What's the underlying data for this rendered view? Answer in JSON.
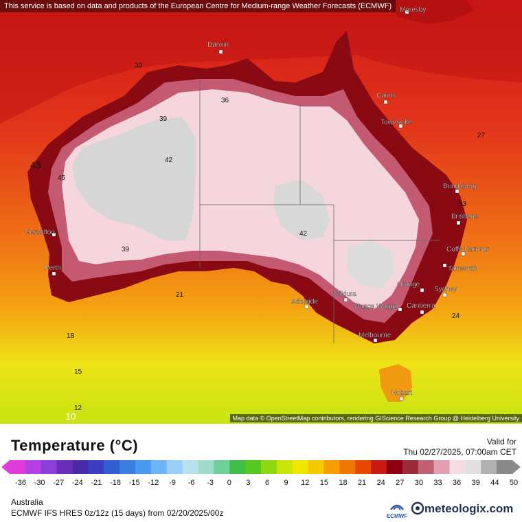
{
  "attribution_top": "This service is based on data and products of the European Centre for Medium-range Weather Forecasts (ECMWF)",
  "attribution_bottom": "Map data © OpenStreetMap contributors, rendering GIScience Research Group @ Heidelberg University",
  "legend": {
    "title": "Temperature (°C)",
    "valid_label": "Valid for",
    "valid_value": "Thu 02/27/2025, 07:00am CET",
    "ticks": [
      "-36",
      "-30",
      "-27",
      "-24",
      "-21",
      "-18",
      "-15",
      "-12",
      "-9",
      "-6",
      "-3",
      "0",
      "3",
      "6",
      "9",
      "12",
      "15",
      "18",
      "21",
      "24",
      "27",
      "30",
      "33",
      "36",
      "39",
      "44",
      "50"
    ],
    "colors": [
      "#e03bd8",
      "#b53fe0",
      "#8a3fd6",
      "#6a2fb8",
      "#4b2aa8",
      "#3b3ec0",
      "#2f5fd0",
      "#3a7ee0",
      "#4a9af0",
      "#6cb6f5",
      "#98cff7",
      "#b8e2f0",
      "#a0dccc",
      "#6fd19a",
      "#3fbf4a",
      "#57c81f",
      "#8fd80f",
      "#c8e40a",
      "#f0e600",
      "#f5c800",
      "#f59f00",
      "#f07800",
      "#e84800",
      "#c81a10",
      "#8a0010",
      "#9a2a3a",
      "#c06070",
      "#e0a0b0",
      "#f5dde2",
      "#e0e0e0",
      "#b0b0b0",
      "#8a8a8a"
    ]
  },
  "region": "Australia",
  "model": "ECMWF IFS HRES 0z/12z (15 days) from 02/20/2025/00z",
  "branding": {
    "ecmwf": "ECMWF",
    "meteologix": "meteologix.com"
  },
  "cities": [
    {
      "name": "Darwin"
    },
    {
      "name": "Cairns"
    },
    {
      "name": "Townsville"
    },
    {
      "name": "Bundaberg"
    },
    {
      "name": "Brisbane"
    },
    {
      "name": "Coffs Harbour"
    },
    {
      "name": "Tamworth"
    },
    {
      "name": "Sydney"
    },
    {
      "name": "Orange"
    },
    {
      "name": "Canberra"
    },
    {
      "name": "Wagga Wagga"
    },
    {
      "name": "Mildura"
    },
    {
      "name": "Adelaide"
    },
    {
      "name": "Melbourne"
    },
    {
      "name": "Hobart"
    },
    {
      "name": "Perth"
    },
    {
      "name": "Geraldton"
    },
    {
      "name": "Moresby"
    }
  ],
  "map_labels": [
    "30",
    "36",
    "39",
    "42",
    "45",
    "43",
    "42",
    "39",
    "21",
    "24",
    "18",
    "15",
    "12",
    "10",
    "27",
    "33"
  ]
}
